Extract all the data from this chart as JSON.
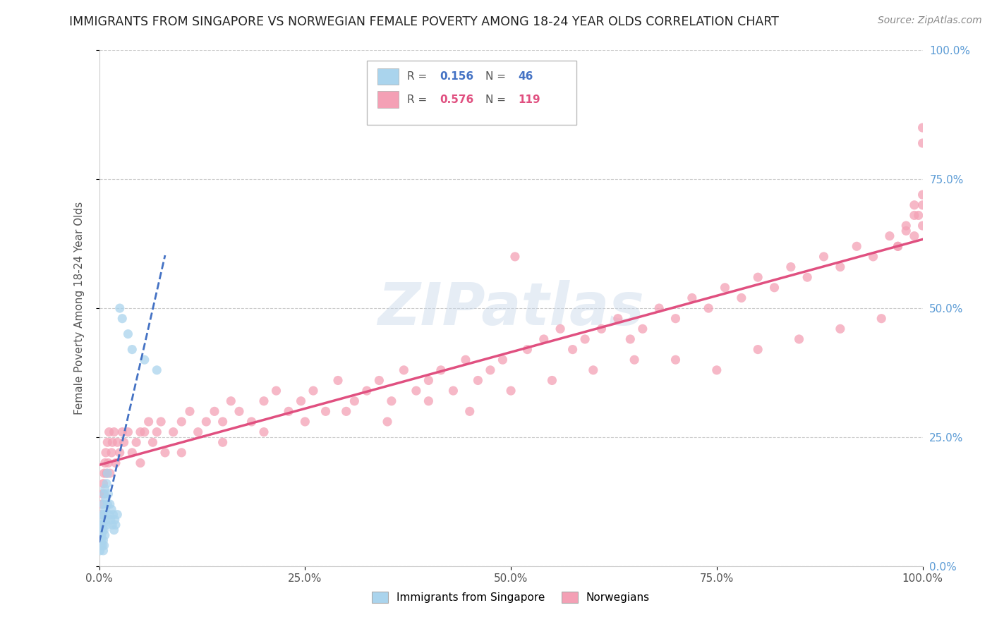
{
  "title": "IMMIGRANTS FROM SINGAPORE VS NORWEGIAN FEMALE POVERTY AMONG 18-24 YEAR OLDS CORRELATION CHART",
  "source": "Source: ZipAtlas.com",
  "ylabel": "Female Poverty Among 18-24 Year Olds",
  "xlim": [
    0,
    1
  ],
  "ylim": [
    0,
    1
  ],
  "yticks_right": [
    "0.0%",
    "25.0%",
    "50.0%",
    "75.0%",
    "100.0%"
  ],
  "ytick_values": [
    0.0,
    0.25,
    0.5,
    0.75,
    1.0
  ],
  "xtick_values": [
    0.0,
    0.25,
    0.5,
    0.75,
    1.0
  ],
  "xtick_labels": [
    "0.0%",
    "25.0%",
    "50.0%",
    "75.0%",
    "100.0%"
  ],
  "legend_r1": "0.156",
  "legend_n1": "46",
  "legend_r2": "0.576",
  "legend_n2": "119",
  "watermark": "ZIPatlas",
  "scatter_singapore_color": "#aad4ed",
  "scatter_norwegian_color": "#f4a0b5",
  "trend_singapore_color": "#4472c4",
  "trend_norwegian_color": "#e05080",
  "singapore_x": [
    0.001,
    0.001,
    0.002,
    0.002,
    0.002,
    0.003,
    0.003,
    0.003,
    0.003,
    0.004,
    0.004,
    0.004,
    0.005,
    0.005,
    0.005,
    0.005,
    0.006,
    0.006,
    0.006,
    0.006,
    0.007,
    0.007,
    0.007,
    0.008,
    0.008,
    0.009,
    0.009,
    0.01,
    0.01,
    0.011,
    0.012,
    0.013,
    0.014,
    0.015,
    0.016,
    0.017,
    0.018,
    0.019,
    0.02,
    0.022,
    0.025,
    0.028,
    0.035,
    0.04,
    0.055,
    0.07
  ],
  "singapore_y": [
    0.03,
    0.05,
    0.06,
    0.04,
    0.07,
    0.08,
    0.05,
    0.09,
    0.06,
    0.1,
    0.07,
    0.04,
    0.12,
    0.08,
    0.05,
    0.03,
    0.14,
    0.1,
    0.07,
    0.04,
    0.15,
    0.11,
    0.06,
    0.13,
    0.09,
    0.16,
    0.08,
    0.18,
    0.12,
    0.14,
    0.1,
    0.12,
    0.09,
    0.11,
    0.08,
    0.1,
    0.07,
    0.09,
    0.08,
    0.1,
    0.5,
    0.48,
    0.45,
    0.42,
    0.4,
    0.38
  ],
  "norwegian_x": [
    0.001,
    0.002,
    0.003,
    0.004,
    0.005,
    0.006,
    0.006,
    0.007,
    0.008,
    0.009,
    0.01,
    0.011,
    0.012,
    0.013,
    0.015,
    0.016,
    0.018,
    0.02,
    0.022,
    0.025,
    0.028,
    0.03,
    0.035,
    0.04,
    0.045,
    0.05,
    0.055,
    0.06,
    0.065,
    0.07,
    0.075,
    0.08,
    0.09,
    0.1,
    0.11,
    0.12,
    0.13,
    0.14,
    0.15,
    0.16,
    0.17,
    0.185,
    0.2,
    0.215,
    0.23,
    0.245,
    0.26,
    0.275,
    0.29,
    0.31,
    0.325,
    0.34,
    0.355,
    0.37,
    0.385,
    0.4,
    0.415,
    0.43,
    0.445,
    0.46,
    0.475,
    0.49,
    0.505,
    0.52,
    0.54,
    0.56,
    0.575,
    0.59,
    0.61,
    0.63,
    0.645,
    0.66,
    0.68,
    0.7,
    0.72,
    0.74,
    0.76,
    0.78,
    0.8,
    0.82,
    0.84,
    0.86,
    0.88,
    0.9,
    0.92,
    0.94,
    0.96,
    0.97,
    0.98,
    0.99,
    0.995,
    1.0,
    1.0,
    1.0,
    1.0,
    0.05,
    0.1,
    0.15,
    0.2,
    0.25,
    0.3,
    0.35,
    0.4,
    0.45,
    0.5,
    0.55,
    0.6,
    0.65,
    0.7,
    0.75,
    0.8,
    0.85,
    0.9,
    0.95,
    0.97,
    0.98,
    0.99,
    0.99,
    1.0
  ],
  "norwegian_y": [
    0.08,
    0.1,
    0.12,
    0.14,
    0.16,
    0.18,
    0.14,
    0.2,
    0.22,
    0.18,
    0.24,
    0.2,
    0.26,
    0.18,
    0.22,
    0.24,
    0.26,
    0.2,
    0.24,
    0.22,
    0.26,
    0.24,
    0.26,
    0.22,
    0.24,
    0.2,
    0.26,
    0.28,
    0.24,
    0.26,
    0.28,
    0.22,
    0.26,
    0.28,
    0.3,
    0.26,
    0.28,
    0.3,
    0.28,
    0.32,
    0.3,
    0.28,
    0.32,
    0.34,
    0.3,
    0.32,
    0.34,
    0.3,
    0.36,
    0.32,
    0.34,
    0.36,
    0.32,
    0.38,
    0.34,
    0.36,
    0.38,
    0.34,
    0.4,
    0.36,
    0.38,
    0.4,
    0.6,
    0.42,
    0.44,
    0.46,
    0.42,
    0.44,
    0.46,
    0.48,
    0.44,
    0.46,
    0.5,
    0.48,
    0.52,
    0.5,
    0.54,
    0.52,
    0.56,
    0.54,
    0.58,
    0.56,
    0.6,
    0.58,
    0.62,
    0.6,
    0.64,
    0.62,
    0.66,
    0.64,
    0.68,
    0.66,
    0.7,
    0.72,
    0.82,
    0.26,
    0.22,
    0.24,
    0.26,
    0.28,
    0.3,
    0.28,
    0.32,
    0.3,
    0.34,
    0.36,
    0.38,
    0.4,
    0.4,
    0.38,
    0.42,
    0.44,
    0.46,
    0.48,
    0.62,
    0.65,
    0.68,
    0.7,
    0.85
  ]
}
